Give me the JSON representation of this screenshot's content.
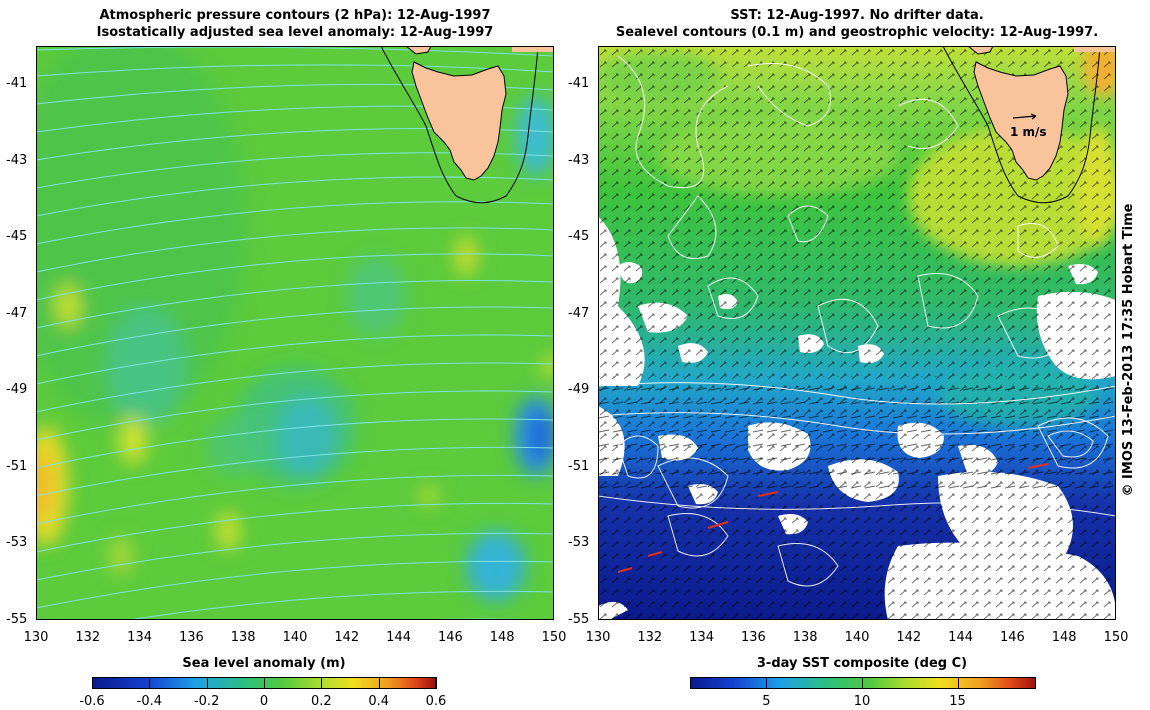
{
  "left_panel": {
    "title_line1": "Atmospheric pressure contours (2 hPa): 12-Aug-1997",
    "title_line2": "Isostatically adjusted sea level anomaly: 12-Aug-1997",
    "colorbar_title": "Sea level anomaly (m)",
    "colorbar_ticks": [
      "-0.6",
      "-0.4",
      "-0.2",
      "0",
      "0.2",
      "0.4",
      "0.6"
    ],
    "colorbar_range": [
      -0.6,
      0.6
    ]
  },
  "right_panel": {
    "title_line1": "SST: 12-Aug-1997. No drifter data.",
    "title_line2": "Sealevel contours (0.1 m) and geostrophic velocity: 12-Aug-1997.",
    "colorbar_title": "3-day SST composite (deg C)",
    "colorbar_ticks": [
      "5",
      "10",
      "15"
    ],
    "colorbar_range": [
      1,
      19
    ],
    "scale_label": "1 m/s"
  },
  "axes": {
    "y_ticks": [
      "-41",
      "-43",
      "-45",
      "-47",
      "-49",
      "-51",
      "-53",
      "-55"
    ],
    "x_ticks": [
      "130",
      "132",
      "134",
      "136",
      "138",
      "140",
      "142",
      "144",
      "146",
      "148",
      "150"
    ],
    "lon_range": [
      130,
      150
    ],
    "lat_range": [
      -55,
      -40
    ]
  },
  "colors": {
    "land": "#f9c49c",
    "pressure_contour": "#7fe3e3",
    "sst_contour": "#ffffff"
  },
  "watermark": "© IMOS 13-Feb-2013 17:35 Hobart Time"
}
